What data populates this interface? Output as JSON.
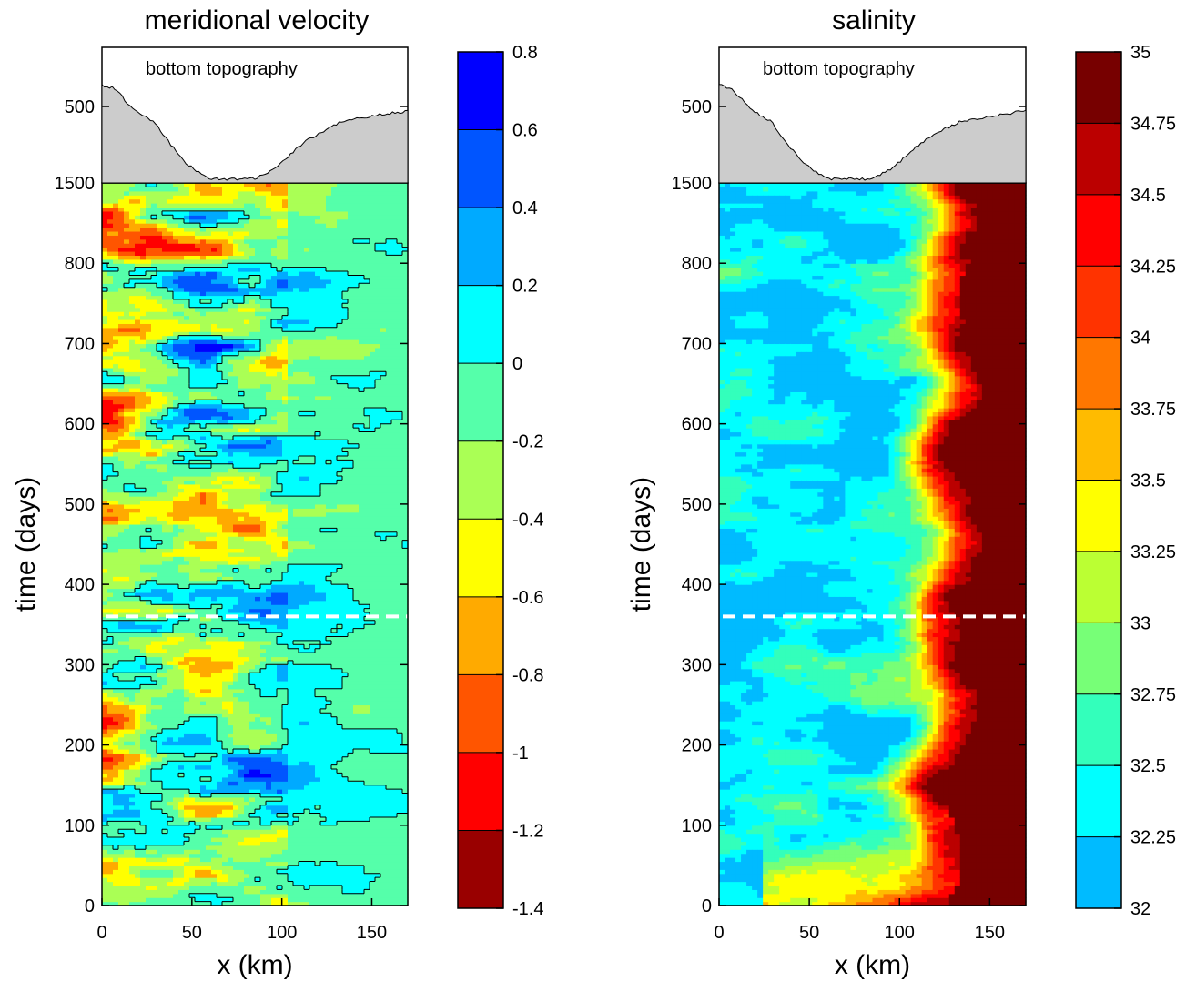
{
  "chart_data": [
    {
      "type": "heatmap",
      "title": "meridional velocity",
      "xlabel": "x (km)",
      "ylabel": "time (days)",
      "xlim": [
        0,
        170
      ],
      "ylim": [
        0,
        900
      ],
      "x_ticks": [
        0,
        50,
        100,
        150
      ],
      "y_ticks": [
        0,
        100,
        200,
        300,
        400,
        500,
        600,
        700,
        800
      ],
      "y_tick_labels": [
        "0",
        "100",
        "200",
        "300",
        "400",
        "500",
        "600",
        "700",
        "800"
      ],
      "dashed_line_at_days": 360,
      "inset": {
        "label": "bottom topography",
        "top_tick_labels": [
          "1500",
          "500"
        ]
      },
      "colorbar": {
        "ticks": [
          "0.8",
          "0.6",
          "0.4",
          "0.2",
          "0",
          "-0.2",
          "-0.4",
          "-0.6",
          "-0.8",
          "-1",
          "-1.2",
          "-1.4"
        ],
        "min": -1.4,
        "max": 0.8,
        "colors_bottom_to_top": [
          "#990000",
          "#ff0000",
          "#ff5500",
          "#ffaa00",
          "#ffff00",
          "#aaff55",
          "#55ffaa",
          "#00ffff",
          "#00aaff",
          "#0055ff",
          "#0000ff"
        ]
      }
    },
    {
      "type": "heatmap",
      "title": "salinity",
      "xlabel": "x (km)",
      "ylabel": "time (days)",
      "xlim": [
        0,
        170
      ],
      "ylim": [
        0,
        900
      ],
      "x_ticks": [
        0,
        50,
        100,
        150
      ],
      "y_ticks": [
        0,
        100,
        200,
        300,
        400,
        500,
        600,
        700,
        800
      ],
      "y_tick_labels": [
        "0",
        "100",
        "200",
        "300",
        "400",
        "500",
        "600",
        "700",
        "800"
      ],
      "dashed_line_at_days": 360,
      "inset": {
        "label": "bottom topography",
        "top_tick_labels": [
          "1500",
          "500"
        ]
      },
      "colorbar": {
        "ticks": [
          "35",
          "34.75",
          "34.5",
          "34.25",
          "34",
          "33.75",
          "33.5",
          "33.25",
          "33",
          "32.75",
          "32.5",
          "32.25",
          "32"
        ],
        "min": 32,
        "max": 35,
        "colors_bottom_to_top": [
          "#00bbff",
          "#00ffff",
          "#33ffbb",
          "#77ff77",
          "#bbff33",
          "#ffff00",
          "#ffbb00",
          "#ff7700",
          "#ff3300",
          "#ff0000",
          "#bb0000",
          "#770000"
        ]
      }
    }
  ]
}
